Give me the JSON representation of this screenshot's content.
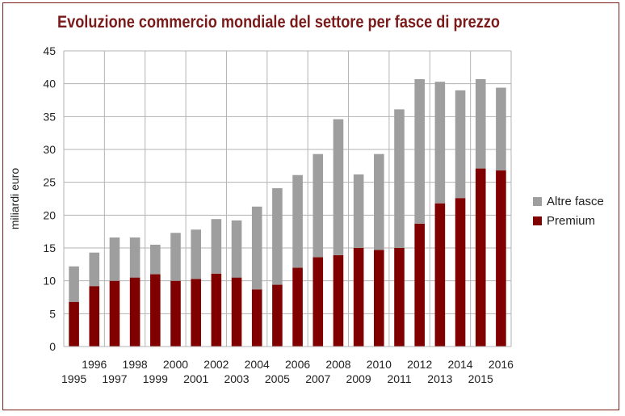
{
  "chart_data": {
    "type": "bar",
    "stacked": true,
    "title": "Evoluzione commercio mondiale del settore per fasce di prezzo",
    "xlabel": "",
    "ylabel": "miliardi euro",
    "ylim": [
      0,
      45
    ],
    "ytick_step": 5,
    "grid": true,
    "legend_position": "right",
    "categories": [
      "1995",
      "1996",
      "1997",
      "1998",
      "1999",
      "2000",
      "2001",
      "2002",
      "2003",
      "2004",
      "2005",
      "2006",
      "2007",
      "2008",
      "2009",
      "2010",
      "2011",
      "2012",
      "2013",
      "2014",
      "2015",
      "2016"
    ],
    "series": [
      {
        "name": "Premium",
        "color": "#800000",
        "values": [
          6.8,
          9.2,
          10.0,
          10.5,
          11.0,
          10.0,
          10.3,
          11.1,
          10.5,
          8.7,
          9.4,
          12.0,
          13.6,
          13.9,
          15.0,
          14.7,
          15.0,
          18.7,
          21.8,
          22.6,
          27.1,
          26.8
        ]
      },
      {
        "name": "Altre fasce",
        "color": "#9e9e9e",
        "values": [
          5.4,
          5.1,
          6.6,
          6.1,
          4.5,
          7.3,
          7.5,
          8.3,
          8.7,
          12.6,
          14.7,
          14.1,
          15.7,
          20.7,
          11.2,
          14.6,
          21.1,
          22.0,
          18.5,
          16.4,
          13.6,
          12.6
        ]
      }
    ],
    "legend": [
      "Altre fasce",
      "Premium"
    ]
  }
}
